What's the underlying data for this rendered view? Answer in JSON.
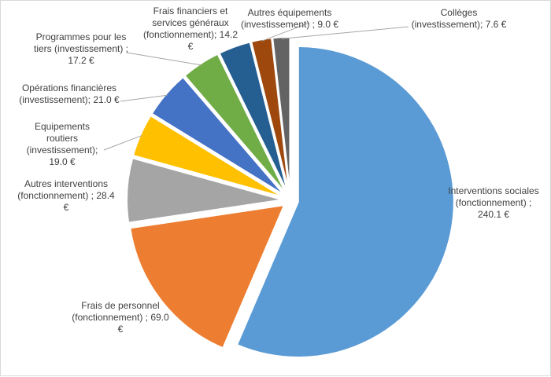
{
  "chart_data": {
    "type": "pie",
    "title": "",
    "unit": "€",
    "slices": [
      {
        "label": "Interventions sociales (fonctionnement) ; 240.1 €",
        "name": "Interventions sociales (fonctionnement)",
        "value": 240.1,
        "color": "#5b9bd5"
      },
      {
        "label": "Frais de personnel (fonctionnement) ; 69.0 €",
        "name": "Frais de personnel (fonctionnement)",
        "value": 69.0,
        "color": "#ed7d31"
      },
      {
        "label": "Autres interventions (fonctionnement) ; 28.4 €",
        "name": "Autres interventions (fonctionnement)",
        "value": 28.4,
        "color": "#a5a5a5"
      },
      {
        "label": "Equipements routiers (investissement); 19.0 €",
        "name": "Equipements routiers (investissement)",
        "value": 19.0,
        "color": "#ffc000"
      },
      {
        "label": "Opérations financières (investissement); 21.0 €",
        "name": "Opérations financières (investissement)",
        "value": 21.0,
        "color": "#4472c4"
      },
      {
        "label": "Programmes pour les tiers (investissement) ; 17.2 €",
        "name": "Programmes pour les tiers (investissement)",
        "value": 17.2,
        "color": "#70ad47"
      },
      {
        "label": "Frais financiers et services généraux (fonctionnement); 14.2 €",
        "name": "Frais financiers et services généraux (fonctionnement)",
        "value": 14.2,
        "color": "#255e91"
      },
      {
        "label": "Autres équipements (investissement) ; 9.0 €",
        "name": "Autres équipements (investissement)",
        "value": 9.0,
        "color": "#9e480e"
      },
      {
        "label": "Collèges (investissement); 7.6 €",
        "name": "Collèges (investissement)",
        "value": 7.6,
        "color": "#636363"
      }
    ]
  }
}
